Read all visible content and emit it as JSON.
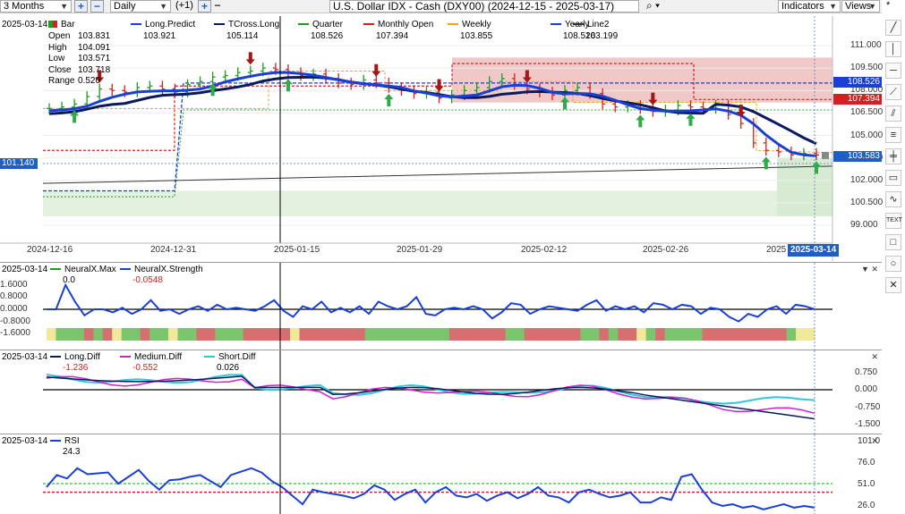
{
  "toolbar": {
    "period": "3 Months",
    "interval": "Daily",
    "offset": "(+1)",
    "symbol": "U.S. Dollar IDX - Cash (DXY00) (2024-12-15 - 2025-03-17)",
    "indicators": "Indicators",
    "views": "Views",
    "pin": "*"
  },
  "main_pane": {
    "date": "2025-03-14",
    "bar_label": "Bar",
    "ohlc": [
      {
        "k": "Open",
        "v": "103.831"
      },
      {
        "k": "High",
        "v": "104.091"
      },
      {
        "k": "Low",
        "v": "103.571"
      },
      {
        "k": "Close",
        "v": "103.718"
      },
      {
        "k": "Range",
        "v": "0.520"
      }
    ],
    "legend": [
      {
        "name": "Long.Predict",
        "value": "103.921",
        "color": "#1a3fd6"
      },
      {
        "name": "TCross.Long",
        "value": "105.114",
        "color": "#0a1a5c"
      },
      {
        "name": "Quarter",
        "value": "108.526",
        "color": "#1aa01a"
      },
      {
        "name": "Monthly Open",
        "value": "107.394",
        "color": "#d42020"
      },
      {
        "name": "Weekly",
        "value": "103.855",
        "color": "#f0a020"
      },
      {
        "name": "Yearly",
        "value": "108.526",
        "color": "#1a3fd6"
      },
      {
        "name": "Line2",
        "value": "103.199",
        "color": "#333333"
      }
    ],
    "y_ticks": [
      "111.000",
      "109.500",
      "108.000",
      "106.500",
      "105.000",
      "103.500",
      "102.000",
      "100.500",
      "99.000"
    ],
    "price_tags": [
      {
        "v": "108.526",
        "color": "#1a3fd6"
      },
      {
        "v": "107.394",
        "color": "#d42020"
      },
      {
        "v": "103.583",
        "color": "#1f5fbf"
      }
    ],
    "left_tag": "101.140",
    "x_ticks": [
      "2024-12-16",
      "2024-12-31",
      "2025-01-15",
      "2025-01-29",
      "2025-02-12",
      "2025-02-26",
      "2025"
    ],
    "cursor_date": "2025-03-14"
  },
  "neural_pane": {
    "date": "2025-03-14",
    "legend": [
      {
        "name": "NeuralX.Max",
        "value": "0.0",
        "color": "#1aa01a"
      },
      {
        "name": "NeuralX.Strength",
        "value": "-0.0548",
        "color": "#1a3fd6"
      }
    ],
    "left_ticks": [
      "1.6000",
      "0.8000",
      "0.0000",
      "-0.8000",
      "-1.6000"
    ],
    "strength": [
      0.0,
      0.0,
      1.6,
      0.5,
      -0.4,
      0.0,
      0.0,
      -0.2,
      0.1,
      -0.3,
      0.0,
      0.6,
      -0.1,
      0.0,
      -0.3,
      0.0,
      0.2,
      -0.1,
      0.3,
      0.0,
      0.1,
      0.0,
      -0.1,
      0.2,
      0.6,
      -0.1,
      -0.5,
      0.2,
      0.0,
      0.5,
      -0.2,
      0.1,
      -0.2,
      0.2,
      -0.3,
      0.5,
      0.2,
      0.0,
      0.2,
      0.8,
      -0.3,
      -0.4,
      0.0,
      0.1,
      0.0,
      0.2,
      0.0,
      -0.6,
      -0.2,
      0.4,
      0.3,
      -0.3,
      0.0,
      0.2,
      0.1,
      0.0,
      -0.1,
      0.3,
      0.6,
      -0.1,
      0.2,
      0.0,
      0.2,
      -0.2,
      0.4,
      0.3,
      0.0,
      0.3,
      0.2,
      -0.3,
      0.1,
      0.0,
      -0.5,
      -0.8,
      -0.3,
      -0.5,
      0.0,
      0.2,
      -0.3,
      0.3,
      0.2,
      0.0
    ],
    "signal": [
      "y",
      "g",
      "g",
      "g",
      "r",
      "g",
      "r",
      "y",
      "g",
      "g",
      "r",
      "g",
      "g",
      "y",
      "g",
      "g",
      "r",
      "r",
      "g",
      "g",
      "g",
      "r",
      "r",
      "r",
      "r",
      "r",
      "y",
      "r",
      "r",
      "r",
      "r",
      "r",
      "r",
      "r",
      "g",
      "g",
      "g",
      "g",
      "g",
      "g",
      "g",
      "g",
      "g",
      "r",
      "r",
      "r",
      "r",
      "r",
      "r",
      "g",
      "g",
      "r",
      "r",
      "r",
      "r",
      "r",
      "r",
      "g",
      "g",
      "r",
      "g",
      "r",
      "r",
      "y",
      "g",
      "r",
      "g",
      "g",
      "g",
      "g",
      "r",
      "r",
      "r",
      "r",
      "r",
      "r",
      "r",
      "r",
      "r",
      "g",
      "y",
      "y"
    ]
  },
  "diff_pane": {
    "date": "2025-03-14",
    "legend": [
      {
        "name": "Long.Diff",
        "value": "-1.236",
        "color": "#0a1a5c"
      },
      {
        "name": "Medium.Diff",
        "value": "-0.552",
        "color": "#d020d0"
      },
      {
        "name": "Short.Diff",
        "value": "0.026",
        "color": "#30c8d8"
      }
    ],
    "right_ticks": [
      "0.750",
      "0.000",
      "-0.750",
      "-1.500"
    ]
  },
  "rsi_pane": {
    "date": "2025-03-14",
    "legend": [
      {
        "name": "RSI",
        "value": "24.3",
        "color": "#1a3fd6"
      }
    ],
    "right_ticks": [
      "101.0",
      "76.0",
      "51.0",
      "26.0"
    ],
    "rsi": [
      48,
      62,
      58,
      70,
      63,
      64,
      65,
      52,
      60,
      68,
      55,
      45,
      56,
      57,
      60,
      62,
      55,
      48,
      62,
      66,
      70,
      65,
      55,
      48,
      38,
      28,
      45,
      42,
      40,
      38,
      35,
      40,
      50,
      45,
      33,
      40,
      45,
      30,
      42,
      48,
      38,
      36,
      40,
      32,
      38,
      42,
      35,
      40,
      48,
      38,
      36,
      30,
      42,
      45,
      40,
      36,
      38,
      42,
      30,
      30,
      36,
      33,
      60,
      63,
      45,
      30,
      26,
      28,
      24,
      26,
      22,
      25,
      28,
      24,
      26,
      24
    ]
  }
}
